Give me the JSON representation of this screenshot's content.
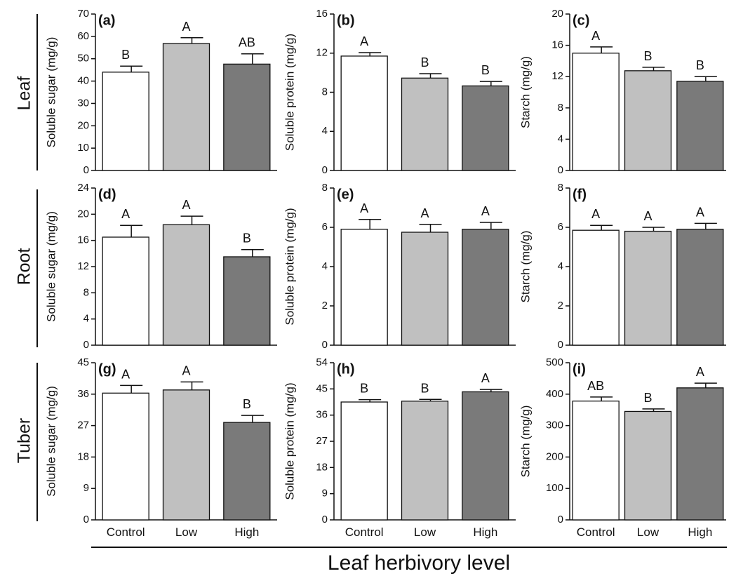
{
  "figure": {
    "xlabel": "Leaf herbivory level",
    "row_labels": [
      "Leaf",
      "Root",
      "Tuber"
    ],
    "categories": [
      "Control",
      "Low",
      "High"
    ],
    "bar_colors": [
      "#ffffff",
      "#c0c0c0",
      "#7a7a7a"
    ]
  },
  "chart_data": [
    {
      "type": "bar",
      "panel": "(a)",
      "ylabel": "Soluble sugar (mg/g)",
      "ylim": [
        0,
        70
      ],
      "yticks": [
        0,
        10,
        20,
        30,
        40,
        50,
        60,
        70
      ],
      "categories": [
        "Control",
        "Low",
        "High"
      ],
      "values": [
        44,
        56.8,
        47.6
      ],
      "errors": [
        2.7,
        2.6,
        4.6
      ],
      "letters": [
        "B",
        "A",
        "AB"
      ]
    },
    {
      "type": "bar",
      "panel": "(b)",
      "ylabel": "Soluble protein (mg/g)",
      "ylim": [
        0,
        16
      ],
      "yticks": [
        0,
        4,
        8,
        12,
        16
      ],
      "categories": [
        "Control",
        "Low",
        "High"
      ],
      "values": [
        11.7,
        9.45,
        8.65
      ],
      "errors": [
        0.35,
        0.45,
        0.45
      ],
      "letters": [
        "A",
        "B",
        "B"
      ]
    },
    {
      "type": "bar",
      "panel": "(c)",
      "ylabel": "Starch (mg/g)",
      "ylim": [
        0,
        20
      ],
      "yticks": [
        0,
        4,
        8,
        12,
        16,
        20
      ],
      "categories": [
        "Control",
        "Low",
        "High"
      ],
      "values": [
        15,
        12.75,
        11.4
      ],
      "errors": [
        0.8,
        0.45,
        0.6
      ],
      "letters": [
        "A",
        "B",
        "B"
      ]
    },
    {
      "type": "bar",
      "panel": "(d)",
      "ylabel": "Soluble sugar (mg/g)",
      "ylim": [
        0,
        24
      ],
      "yticks": [
        0,
        4,
        8,
        12,
        16,
        20,
        24
      ],
      "categories": [
        "Control",
        "Low",
        "High"
      ],
      "values": [
        16.5,
        18.4,
        13.5
      ],
      "errors": [
        1.8,
        1.3,
        1.1
      ],
      "letters": [
        "A",
        "A",
        "B"
      ]
    },
    {
      "type": "bar",
      "panel": "(e)",
      "ylabel": "Soluble protein (mg/g)",
      "ylim": [
        0,
        8
      ],
      "yticks": [
        0,
        2,
        4,
        6,
        8
      ],
      "categories": [
        "Control",
        "Low",
        "High"
      ],
      "values": [
        5.9,
        5.75,
        5.9
      ],
      "errors": [
        0.5,
        0.4,
        0.35
      ],
      "letters": [
        "A",
        "A",
        "A"
      ]
    },
    {
      "type": "bar",
      "panel": "(f)",
      "ylabel": "Starch (mg/g)",
      "ylim": [
        0,
        8
      ],
      "yticks": [
        0,
        2,
        4,
        6,
        8
      ],
      "categories": [
        "Control",
        "Low",
        "High"
      ],
      "values": [
        5.85,
        5.8,
        5.9
      ],
      "errors": [
        0.25,
        0.2,
        0.3
      ],
      "letters": [
        "A",
        "A",
        "A"
      ]
    },
    {
      "type": "bar",
      "panel": "(g)",
      "ylabel": "Soluble sugar (mg/g)",
      "ylim": [
        0,
        45
      ],
      "yticks": [
        0,
        9,
        18,
        27,
        36,
        45
      ],
      "categories": [
        "Control",
        "Low",
        "High"
      ],
      "values": [
        36.3,
        37.2,
        27.9
      ],
      "errors": [
        2.2,
        2.3,
        2.0
      ],
      "letters": [
        "A",
        "A",
        "B"
      ]
    },
    {
      "type": "bar",
      "panel": "(h)",
      "ylabel": "Soluble protein (mg/g)",
      "ylim": [
        0,
        54
      ],
      "yticks": [
        0,
        9,
        18,
        27,
        36,
        45,
        54
      ],
      "categories": [
        "Control",
        "Low",
        "High"
      ],
      "values": [
        40.5,
        40.8,
        44.0
      ],
      "errors": [
        0.8,
        0.6,
        0.8
      ],
      "letters": [
        "B",
        "B",
        "A"
      ]
    },
    {
      "type": "bar",
      "panel": "(i)",
      "ylabel": "Starch (mg/g)",
      "ylim": [
        0,
        500
      ],
      "yticks": [
        0,
        100,
        200,
        300,
        400,
        500
      ],
      "categories": [
        "Control",
        "Low",
        "High"
      ],
      "values": [
        378,
        345,
        420
      ],
      "errors": [
        13,
        8,
        15
      ],
      "letters": [
        "AB",
        "B",
        "A"
      ]
    }
  ]
}
